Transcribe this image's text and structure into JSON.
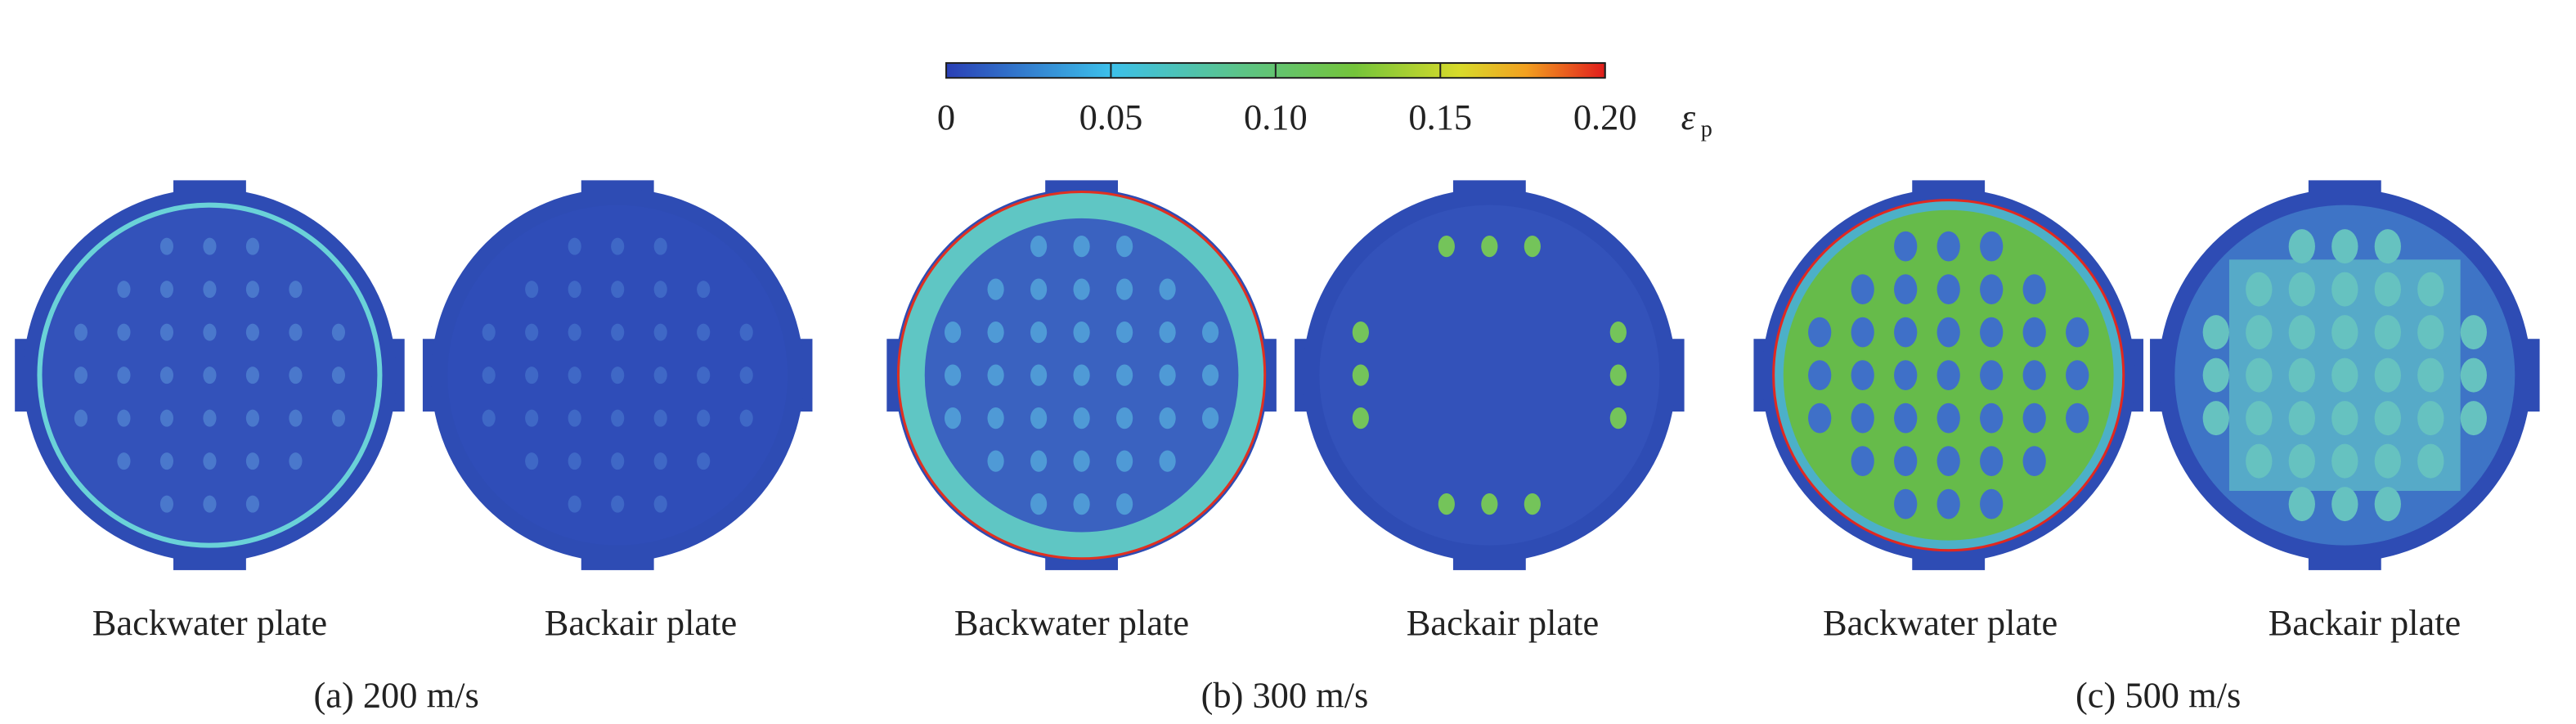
{
  "colorbar": {
    "lim": [
      0,
      0.2
    ],
    "ticks": [
      0,
      0.05,
      {
        "value": 0.1,
        "label": "0.10"
      },
      0.15,
      {
        "value": 0.2,
        "label": "0.20"
      }
    ],
    "symbol": "ε",
    "subscript": "p"
  },
  "panels": [
    {
      "caption": "(a) 200 m/s",
      "plates": [
        "Backwater plate",
        "Backair plate"
      ]
    },
    {
      "caption": "(b) 300 m/s",
      "plates": [
        "Backwater plate",
        "Backair plate"
      ]
    },
    {
      "caption": "(c) 500 m/s",
      "plates": [
        "Backwater plate",
        "Backair plate"
      ]
    }
  ]
}
